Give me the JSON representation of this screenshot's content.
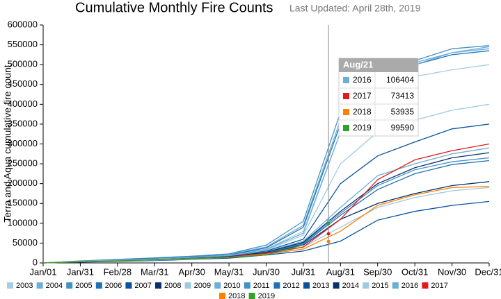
{
  "chart_data": {
    "type": "line",
    "title": "Cumulative Monthly Fire Counts",
    "subtitle": "Last Updated: April 28th, 2019",
    "y_label": "Terra and Aqua cumulative fire count",
    "categories": [
      "Jan/01",
      "Jan/31",
      "Feb/28",
      "Mar/31",
      "Apr/30",
      "May/31",
      "Jun/30",
      "Jul/31",
      "Aug/31",
      "Sep/30",
      "Oct/31",
      "Nov/30",
      "Dec/31"
    ],
    "ylim": [
      0,
      600000
    ],
    "yticks": [
      0,
      50000,
      100000,
      150000,
      200000,
      250000,
      300000,
      350000,
      400000,
      450000,
      500000,
      550000,
      600000
    ],
    "series": [
      {
        "name": "2003",
        "color": "#a6cee3",
        "values": [
          0,
          4000,
          7000,
          10000,
          14000,
          19000,
          35000,
          80000,
          330000,
          440000,
          470000,
          487000,
          500000
        ]
      },
      {
        "name": "2004",
        "color": "#6baed6",
        "values": [
          0,
          5000,
          8000,
          12000,
          16000,
          22000,
          40000,
          95000,
          360000,
          470000,
          505000,
          530000,
          545000
        ]
      },
      {
        "name": "2005",
        "color": "#4292c6",
        "values": [
          0,
          5000,
          9000,
          13000,
          17000,
          23000,
          45000,
          105000,
          380000,
          480000,
          510000,
          540000,
          548000
        ]
      },
      {
        "name": "2006",
        "color": "#2171b5",
        "values": [
          0,
          4000,
          8000,
          11000,
          15000,
          20000,
          38000,
          90000,
          350000,
          465000,
          500000,
          525000,
          535000
        ]
      },
      {
        "name": "2007",
        "color": "#08519c",
        "values": [
          0,
          3000,
          6000,
          9000,
          13000,
          18000,
          30000,
          60000,
          200000,
          270000,
          305000,
          338000,
          350000
        ]
      },
      {
        "name": "2008",
        "color": "#08306b",
        "values": [
          0,
          3000,
          5000,
          8000,
          11000,
          15000,
          25000,
          45000,
          110000,
          150000,
          175000,
          195000,
          205000
        ]
      },
      {
        "name": "2009",
        "color": "#9ecae1",
        "values": [
          0,
          4000,
          7000,
          10000,
          14000,
          19000,
          32000,
          70000,
          250000,
          330000,
          360000,
          385000,
          400000
        ]
      },
      {
        "name": "2010",
        "color": "#6baed6",
        "values": [
          0,
          3000,
          6000,
          9000,
          12000,
          17000,
          28000,
          55000,
          140000,
          220000,
          250000,
          275000,
          290000
        ]
      },
      {
        "name": "2011",
        "color": "#4292c6",
        "values": [
          0,
          3000,
          6000,
          9000,
          12000,
          16000,
          27000,
          50000,
          125000,
          195000,
          235000,
          255000,
          265000
        ]
      },
      {
        "name": "2012",
        "color": "#2171b5",
        "values": [
          0,
          3000,
          5000,
          8000,
          11000,
          15000,
          25000,
          48000,
          120000,
          185000,
          225000,
          248000,
          258000
        ]
      },
      {
        "name": "2013",
        "color": "#08519c",
        "values": [
          0,
          2000,
          4000,
          6000,
          9000,
          12000,
          20000,
          30000,
          55000,
          108000,
          130000,
          145000,
          155000
        ]
      },
      {
        "name": "2014",
        "color": "#08306b",
        "values": [
          0,
          3000,
          6000,
          9000,
          12000,
          16000,
          27000,
          52000,
          130000,
          200000,
          240000,
          265000,
          278000
        ]
      },
      {
        "name": "2015",
        "color": "#9ecae1",
        "values": [
          0,
          3000,
          5000,
          7000,
          10000,
          14000,
          22000,
          40000,
          90000,
          140000,
          165000,
          182000,
          190000
        ]
      },
      {
        "name": "2016",
        "color": "#6baed6",
        "values": [
          0,
          4000,
          7000,
          10000,
          14000,
          19000,
          34000,
          75000,
          330000,
          470000,
          500000,
          530000,
          540000
        ]
      },
      {
        "name": "2017",
        "color": "#e31a1c",
        "values": [
          0,
          3000,
          5000,
          8000,
          11000,
          15000,
          24000,
          40000,
          110000,
          210000,
          260000,
          283000,
          300000
        ]
      },
      {
        "name": "2018",
        "color": "#ff7f00",
        "values": [
          0,
          3000,
          5000,
          8000,
          11000,
          14000,
          22000,
          35000,
          80000,
          145000,
          172000,
          190000,
          193000
        ]
      },
      {
        "name": "2019",
        "color": "#33a02c",
        "values": [
          0,
          3000,
          5000,
          8000,
          11000,
          14000,
          20000,
          45000,
          null,
          null,
          null,
          null,
          null
        ]
      }
    ],
    "tooltip": {
      "title": "Aug/21",
      "rows": [
        {
          "name": "2016",
          "color": "#6baed6",
          "value": 106404
        },
        {
          "name": "2017",
          "color": "#e31a1c",
          "value": 73413
        },
        {
          "name": "2018",
          "color": "#ff7f00",
          "value": 53935
        },
        {
          "name": "2019",
          "color": "#33a02c",
          "value": 99590
        }
      ]
    }
  }
}
